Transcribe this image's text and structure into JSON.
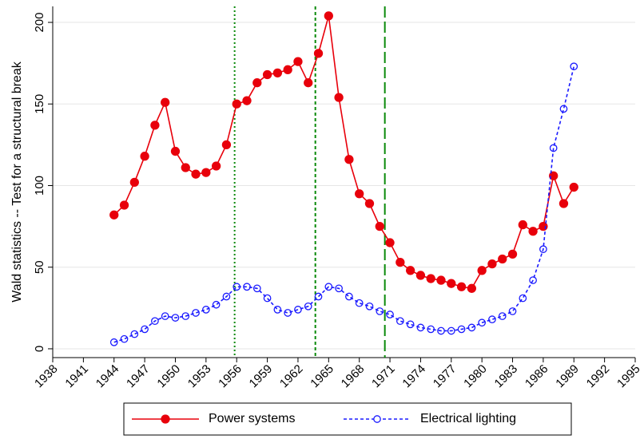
{
  "chart_data": {
    "type": "line",
    "y_label": "Wald statistics -- Test for a structural break",
    "x": [
      1944,
      1945,
      1946,
      1947,
      1948,
      1949,
      1950,
      1951,
      1952,
      1953,
      1954,
      1955,
      1956,
      1957,
      1958,
      1959,
      1960,
      1961,
      1962,
      1963,
      1964,
      1965,
      1966,
      1967,
      1968,
      1969,
      1970,
      1971,
      1972,
      1973,
      1974,
      1975,
      1976,
      1977,
      1978,
      1979,
      1980,
      1981,
      1982,
      1983,
      1984,
      1985,
      1986,
      1987,
      1988,
      1989
    ],
    "series": [
      {
        "name": "Power systems",
        "color": "#e8000b",
        "line_style": "solid",
        "marker": "filled",
        "values": [
          82,
          88,
          102,
          118,
          137,
          151,
          121,
          111,
          107,
          108,
          112,
          125,
          150,
          152,
          163,
          168,
          169,
          171,
          176,
          163,
          181,
          204,
          154,
          116,
          95,
          89,
          75,
          65,
          53,
          48,
          45,
          43,
          42,
          40,
          38,
          37,
          48,
          52,
          55,
          58,
          76,
          72,
          75,
          106,
          89,
          99
        ]
      },
      {
        "name": "Electrical lighting",
        "color": "#1a1aff",
        "line_style": "dashed",
        "marker": "hollow",
        "values": [
          4,
          6,
          9,
          12,
          17,
          20,
          19,
          20,
          22,
          24,
          27,
          32,
          38,
          38,
          37,
          31,
          24,
          22,
          24,
          26,
          32,
          38,
          37,
          32,
          28,
          26,
          23,
          21,
          17,
          15,
          13,
          12,
          11,
          11,
          12,
          13,
          16,
          18,
          20,
          23,
          31,
          42,
          61,
          123,
          147,
          173
        ]
      }
    ],
    "vlines": [
      {
        "x": 1955.8,
        "style": "dotted",
        "color": "#0a8a0a"
      },
      {
        "x": 1963.7,
        "style": "dashed",
        "color": "#0a8a0a"
      },
      {
        "x": 1970.5,
        "style": "longdash",
        "color": "#0a8a0a"
      }
    ],
    "xlim": [
      1938,
      1995
    ],
    "xticks": [
      1938,
      1941,
      1944,
      1947,
      1950,
      1953,
      1956,
      1959,
      1962,
      1965,
      1968,
      1971,
      1974,
      1977,
      1980,
      1983,
      1986,
      1989,
      1992,
      1995
    ],
    "ylim": [
      -5.4,
      209.8
    ],
    "yticks": [
      0,
      50,
      100,
      150,
      200
    ],
    "grid": true,
    "legend": "bottom"
  }
}
